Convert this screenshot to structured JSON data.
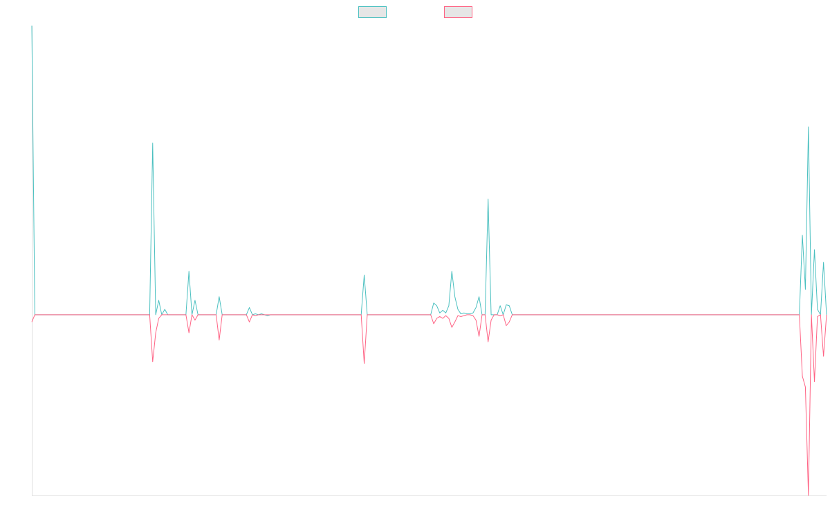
{
  "chart_data": {
    "type": "line",
    "title": "",
    "xlabel": "",
    "ylabel": "",
    "grid": false,
    "legend_placement": "top-center",
    "ylim": [
      -1.0,
      1.6
    ],
    "series": [
      {
        "color": "#4bc0c0",
        "points": [
          [
            0,
            1.6
          ],
          [
            1,
            0
          ],
          [
            39,
            0
          ],
          [
            40,
            0.95
          ],
          [
            41,
            0
          ],
          [
            42,
            0.08
          ],
          [
            43,
            0
          ],
          [
            44,
            0.03
          ],
          [
            45,
            0
          ],
          [
            51,
            0
          ],
          [
            52,
            0.24
          ],
          [
            53,
            0
          ],
          [
            54,
            0.08
          ],
          [
            55,
            0
          ],
          [
            61,
            0
          ],
          [
            62,
            0.1
          ],
          [
            63,
            0
          ],
          [
            71,
            0
          ],
          [
            72,
            0.04
          ],
          [
            73,
            0
          ],
          [
            74,
            0.005
          ],
          [
            75,
            0
          ],
          [
            76,
            0.005
          ],
          [
            77,
            0
          ],
          [
            78,
            -0.005
          ],
          [
            79,
            0
          ],
          [
            109,
            0
          ],
          [
            110,
            0.22
          ],
          [
            111,
            0
          ],
          [
            132,
            0
          ],
          [
            133,
            0.065
          ],
          [
            134,
            0.05
          ],
          [
            135,
            0.01
          ],
          [
            136,
            0.025
          ],
          [
            137,
            0.01
          ],
          [
            138,
            0.05
          ],
          [
            139,
            0.24
          ],
          [
            140,
            0.1
          ],
          [
            141,
            0.03
          ],
          [
            142,
            0.005
          ],
          [
            143,
            0.01
          ],
          [
            144,
            0.005
          ],
          [
            145,
            0.005
          ],
          [
            146,
            0.01
          ],
          [
            147,
            0.04
          ],
          [
            148,
            0.1
          ],
          [
            149,
            0
          ],
          [
            150,
            0
          ],
          [
            151,
            0.64
          ],
          [
            152,
            0
          ],
          [
            153,
            0
          ],
          [
            154,
            0
          ],
          [
            155,
            0.05
          ],
          [
            156,
            0
          ],
          [
            157,
            0.055
          ],
          [
            158,
            0.05
          ],
          [
            159,
            0
          ],
          [
            254,
            0
          ],
          [
            255,
            0.44
          ],
          [
            256,
            0.14
          ],
          [
            257,
            1.04
          ],
          [
            258,
            0
          ],
          [
            259,
            0.36
          ],
          [
            260,
            0.03
          ],
          [
            261,
            0
          ],
          [
            262,
            0.29
          ],
          [
            263,
            0
          ]
        ]
      },
      {
        "color": "#ff6384",
        "points": [
          [
            0,
            -0.04
          ],
          [
            1,
            0
          ],
          [
            39,
            0
          ],
          [
            40,
            -0.26
          ],
          [
            41,
            -0.1
          ],
          [
            42,
            -0.02
          ],
          [
            43,
            0
          ],
          [
            51,
            0
          ],
          [
            52,
            -0.1
          ],
          [
            53,
            0
          ],
          [
            54,
            -0.03
          ],
          [
            55,
            0
          ],
          [
            61,
            0
          ],
          [
            62,
            -0.14
          ],
          [
            63,
            0
          ],
          [
            71,
            0
          ],
          [
            72,
            -0.04
          ],
          [
            73,
            0
          ],
          [
            74,
            -0.005
          ],
          [
            75,
            0
          ],
          [
            109,
            0
          ],
          [
            110,
            -0.27
          ],
          [
            111,
            0
          ],
          [
            132,
            0
          ],
          [
            133,
            -0.05
          ],
          [
            134,
            -0.02
          ],
          [
            135,
            -0.01
          ],
          [
            136,
            -0.02
          ],
          [
            137,
            -0.005
          ],
          [
            138,
            -0.02
          ],
          [
            139,
            -0.07
          ],
          [
            140,
            -0.04
          ],
          [
            141,
            -0.005
          ],
          [
            142,
            -0.01
          ],
          [
            143,
            -0.005
          ],
          [
            144,
            0
          ],
          [
            145,
            0
          ],
          [
            146,
            -0.005
          ],
          [
            147,
            -0.03
          ],
          [
            148,
            -0.12
          ],
          [
            149,
            0
          ],
          [
            150,
            0
          ],
          [
            151,
            -0.15
          ],
          [
            152,
            -0.03
          ],
          [
            153,
            0
          ],
          [
            154,
            0
          ],
          [
            155,
            -0.005
          ],
          [
            156,
            0
          ],
          [
            157,
            -0.06
          ],
          [
            158,
            -0.04
          ],
          [
            159,
            0
          ],
          [
            254,
            0
          ],
          [
            255,
            -0.34
          ],
          [
            256,
            -0.4
          ],
          [
            257,
            -1.0
          ],
          [
            258,
            0
          ],
          [
            259,
            -0.37
          ],
          [
            260,
            -0.01
          ],
          [
            261,
            0
          ],
          [
            262,
            -0.23
          ],
          [
            263,
            0
          ]
        ]
      }
    ],
    "legend": [
      {
        "color": "#4bc0c0"
      },
      {
        "color": "#ff6384"
      }
    ]
  }
}
